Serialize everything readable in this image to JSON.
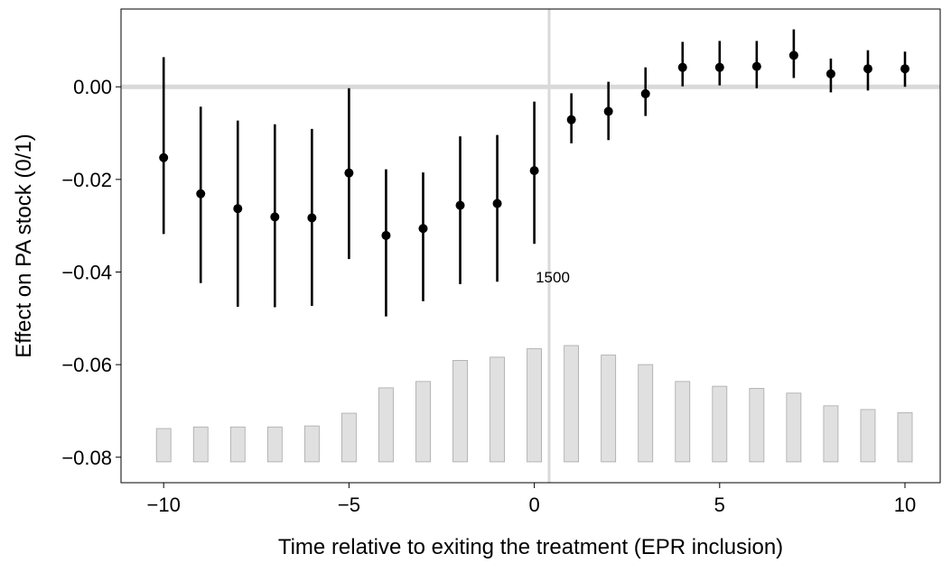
{
  "chart_data": {
    "type": "scatter",
    "xlabel": "Time relative to exiting the treatment (EPR inclusion)",
    "ylabel": "Effect on PA stock (0/1)",
    "xlim": [
      -11.15,
      10.95
    ],
    "ylim": [
      -0.0855,
      0.0168
    ],
    "x_ticks": [
      -10,
      -5,
      0,
      5,
      10
    ],
    "x_tick_labels": [
      "−10",
      "−5",
      "0",
      "5",
      "10"
    ],
    "y_ticks": [
      0.0,
      -0.02,
      -0.04,
      -0.06,
      -0.08
    ],
    "y_tick_labels": [
      "0.00",
      "−0.02",
      "−0.04",
      "−0.06",
      "−0.08"
    ],
    "reference_lines": {
      "horizontal_y": 0.0,
      "vertical_x": 0.4
    },
    "grid": false,
    "series": [
      {
        "x": [
          -10,
          -9,
          -8,
          -7,
          -6,
          -5,
          -4,
          -3,
          -2,
          -1,
          0,
          1,
          2,
          3,
          4,
          5,
          6,
          7,
          8,
          9,
          10
        ],
        "estimate": [
          -0.0153,
          -0.0231,
          -0.0263,
          -0.0281,
          -0.0283,
          -0.0186,
          -0.0321,
          -0.0306,
          -0.0256,
          -0.0252,
          -0.0181,
          -0.0071,
          -0.0053,
          -0.0015,
          0.0042,
          0.0042,
          0.0044,
          0.0068,
          0.0028,
          0.0039,
          0.0039
        ],
        "ci_low": [
          -0.0318,
          -0.0424,
          -0.0475,
          -0.0476,
          -0.0473,
          -0.0372,
          -0.0496,
          -0.0463,
          -0.0426,
          -0.0421,
          -0.0339,
          -0.0122,
          -0.0115,
          -0.0063,
          0.0001,
          0.0003,
          -0.0003,
          0.0019,
          -0.0012,
          -0.0008,
          0.0
        ],
        "ci_high": [
          0.0064,
          -0.0043,
          -0.0073,
          -0.0081,
          -0.0091,
          -0.0003,
          -0.0178,
          -0.0185,
          -0.0107,
          -0.0104,
          -0.0032,
          -0.0014,
          0.0011,
          0.0042,
          0.0097,
          0.0099,
          0.0099,
          0.0124,
          0.0061,
          0.0079,
          0.0076
        ]
      }
    ],
    "histogram": {
      "annotation": "1500",
      "annotation_value": 1500,
      "baseline_y": -0.081,
      "x": [
        -10,
        -9,
        -8,
        -7,
        -6,
        -5,
        -4,
        -3,
        -2,
        -1,
        0,
        1,
        2,
        3,
        4,
        5,
        6,
        7,
        8,
        9,
        10
      ],
      "counts": [
        315,
        330,
        330,
        330,
        340,
        460,
        700,
        760,
        960,
        990,
        1070,
        1100,
        1010,
        920,
        760,
        715,
        695,
        650,
        530,
        495,
        465
      ],
      "color": "#e0e0e0",
      "stroke": "#a8a8a8"
    },
    "point_color": "#000000",
    "reference_line_color": "#d9d9d9"
  }
}
